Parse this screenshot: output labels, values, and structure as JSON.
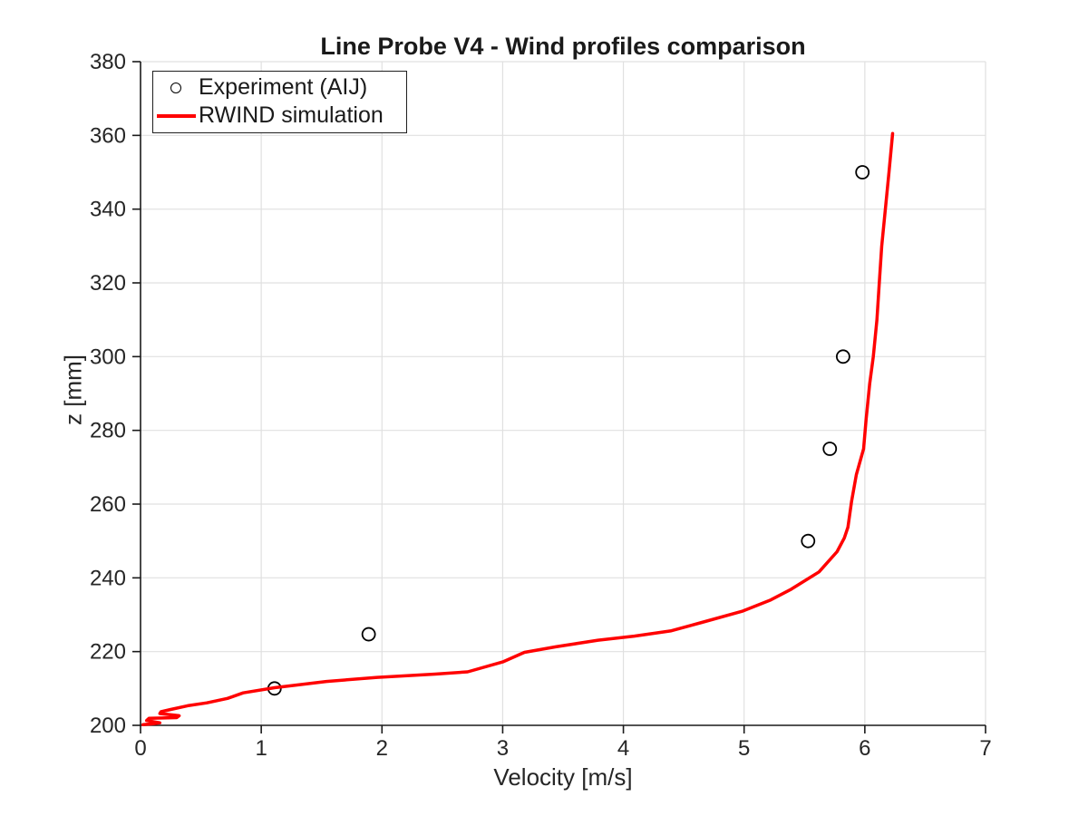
{
  "chart_data": {
    "type": "line",
    "title": "Line Probe V4 - Wind profiles comparison",
    "xlabel": "Velocity [m/s]",
    "ylabel": "z [mm]",
    "xlim": [
      0,
      7
    ],
    "ylim": [
      200,
      380
    ],
    "x_ticks": [
      0,
      1,
      2,
      3,
      4,
      5,
      6,
      7
    ],
    "y_ticks": [
      200,
      220,
      240,
      260,
      280,
      300,
      320,
      340,
      360,
      380
    ],
    "grid": true,
    "legend": {
      "position": "top-left",
      "entries": [
        {
          "label": "Experiment (AIJ)",
          "marker": "open-circle",
          "color": "#000000"
        },
        {
          "label": "RWIND simulation",
          "marker": "line",
          "color": "#ff0000"
        }
      ]
    },
    "series": [
      {
        "name": "Experiment (AIJ)",
        "type": "scatter",
        "marker": "open-circle",
        "color": "#000000",
        "points": [
          [
            1.11,
            210
          ],
          [
            1.89,
            224.7
          ],
          [
            5.53,
            250
          ],
          [
            5.71,
            275
          ],
          [
            5.82,
            300
          ],
          [
            5.98,
            350
          ]
        ]
      },
      {
        "name": "RWIND simulation",
        "type": "line",
        "color": "#ff0000",
        "points": [
          [
            0.02,
            200.2
          ],
          [
            0.1,
            200.4
          ],
          [
            0.16,
            200.7
          ],
          [
            0.05,
            201.3
          ],
          [
            0.07,
            201.9
          ],
          [
            0.3,
            202.1
          ],
          [
            0.32,
            202.6
          ],
          [
            0.16,
            203.2
          ],
          [
            0.17,
            203.7
          ],
          [
            0.25,
            204.3
          ],
          [
            0.39,
            205.3
          ],
          [
            0.55,
            206.1
          ],
          [
            0.72,
            207.3
          ],
          [
            0.85,
            208.8
          ],
          [
            1.11,
            210.2
          ],
          [
            1.54,
            211.9
          ],
          [
            1.96,
            213.0
          ],
          [
            2.44,
            213.9
          ],
          [
            2.71,
            214.5
          ],
          [
            3.0,
            217.2
          ],
          [
            3.18,
            219.8
          ],
          [
            3.44,
            221.3
          ],
          [
            3.79,
            223.1
          ],
          [
            4.09,
            224.2
          ],
          [
            4.39,
            225.6
          ],
          [
            4.65,
            227.9
          ],
          [
            4.99,
            231.0
          ],
          [
            5.22,
            234.0
          ],
          [
            5.39,
            236.9
          ],
          [
            5.62,
            241.6
          ],
          [
            5.77,
            247.1
          ],
          [
            5.83,
            250.8
          ],
          [
            5.86,
            253.7
          ],
          [
            5.89,
            260.7
          ],
          [
            5.93,
            268.0
          ],
          [
            5.99,
            275.0
          ],
          [
            6.01,
            282.8
          ],
          [
            6.04,
            292.6
          ],
          [
            6.07,
            300.0
          ],
          [
            6.1,
            310.0
          ],
          [
            6.12,
            320.0
          ],
          [
            6.14,
            330.0
          ],
          [
            6.17,
            340.0
          ],
          [
            6.2,
            350.0
          ],
          [
            6.23,
            360.5
          ]
        ]
      }
    ]
  },
  "colors": {
    "line_red": "#ff0000",
    "marker_black": "#000000",
    "grid": "#e0e0e0",
    "box_edge": "#d8d8d8",
    "axis": "#1a1a1a",
    "text": "#262626"
  }
}
